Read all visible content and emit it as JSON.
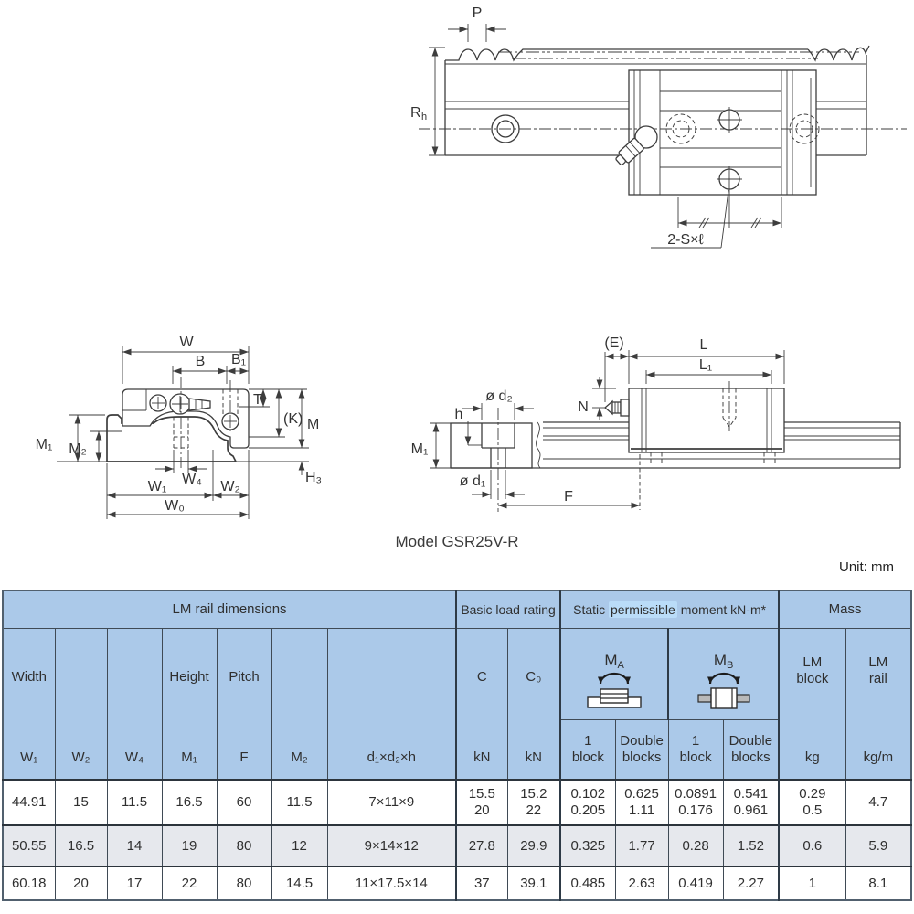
{
  "colors": {
    "header_bg": "#abc9e9",
    "highlight": "#badcf8",
    "row_shaded": "#e6e8ed"
  },
  "page": {
    "model_label": "Model GSR25V-R",
    "unit_label": "Unit: mm"
  },
  "drawings": {
    "top_view": {
      "pitch": "P",
      "rail_height_base": "R",
      "rail_height_sub": "h",
      "bolt_note": "2-S×ℓ"
    },
    "cross_section": {
      "w": "W",
      "b": "B",
      "b1": "B₁",
      "t": "T",
      "k": "(K)",
      "m": "M",
      "m1": "M₁",
      "m2": "M₂",
      "w4": "W₄",
      "h3": "H₃",
      "w1": "W₁",
      "w2": "W₂",
      "w0": "W₀"
    },
    "side_view": {
      "e": "(E)",
      "l": "L",
      "l1": "L₁",
      "n": "N",
      "d2": "ø d₂",
      "h": "h",
      "m1": "M₁",
      "d1": "ø d₁",
      "f": "F"
    }
  },
  "table": {
    "groups": {
      "lm_rail": "LM rail dimensions",
      "load": "Basic load rating",
      "moment_parts": [
        "Static ",
        "permissible",
        " moment kN-m*"
      ],
      "mass": "Mass"
    },
    "headers": {
      "width_label": "Width",
      "height_label": "Height",
      "pitch_label": "Pitch",
      "w1": "W₁",
      "w2": "W₂",
      "w4": "W₄",
      "m1": "M₁",
      "f": "F",
      "m2": "M₂",
      "dxh": "d₁×d₂×h",
      "c": "C",
      "c0": "C₀",
      "kn": "kN",
      "ma_base": "M",
      "ma_sub": "A",
      "mb_base": "M",
      "mb_sub": "B",
      "one_block": "1\nblock",
      "double_blocks": "Double\nblocks",
      "lm_block": "LM\nblock",
      "lm_rail": "LM\nrail",
      "kg": "kg",
      "kg_m": "kg/m"
    },
    "rows": [
      {
        "shaded": false,
        "cells": [
          "44.91",
          "15",
          "11.5",
          "16.5",
          "60",
          "11.5",
          "7×11×9",
          "15.5\n20",
          "15.2\n22",
          "0.102\n0.205",
          "0.625\n1.11",
          "0.0891\n0.176",
          "0.541\n0.961",
          "0.29\n0.5",
          "4.7"
        ]
      },
      {
        "shaded": true,
        "cells": [
          "50.55",
          "16.5",
          "14",
          "19",
          "80",
          "12",
          "9×14×12",
          "27.8",
          "29.9",
          "0.325",
          "1.77",
          "0.28",
          "1.52",
          "0.6",
          "5.9"
        ]
      },
      {
        "shaded": false,
        "cells": [
          "60.18",
          "20",
          "17",
          "22",
          "80",
          "14.5",
          "11×17.5×14",
          "37",
          "39.1",
          "0.485",
          "2.63",
          "0.419",
          "2.27",
          "1",
          "8.1"
        ]
      }
    ]
  }
}
